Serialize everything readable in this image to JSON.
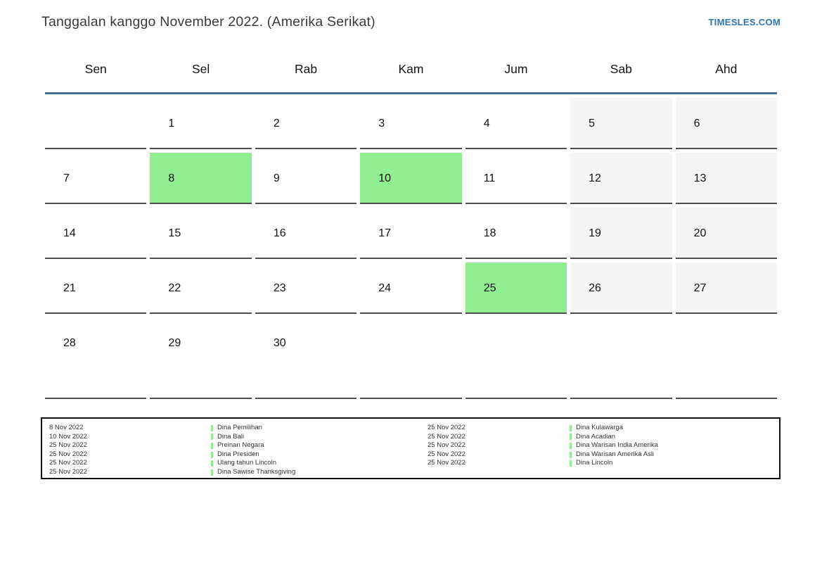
{
  "header": {
    "title": "Tanggalan kanggo November 2022. (Amerika Serikat)",
    "brand": "TIMESLES.COM"
  },
  "weekdays": [
    "Sen",
    "Sel",
    "Rab",
    "Kam",
    "Jum",
    "Sab",
    "Ahd"
  ],
  "calendar": {
    "month": "November 2022",
    "cells": [
      {
        "day": "",
        "state": "empty"
      },
      {
        "day": "1",
        "state": "normal"
      },
      {
        "day": "2",
        "state": "normal"
      },
      {
        "day": "3",
        "state": "normal"
      },
      {
        "day": "4",
        "state": "normal"
      },
      {
        "day": "5",
        "state": "weekend"
      },
      {
        "day": "6",
        "state": "weekend"
      },
      {
        "day": "7",
        "state": "normal"
      },
      {
        "day": "8",
        "state": "highlight"
      },
      {
        "day": "9",
        "state": "normal"
      },
      {
        "day": "10",
        "state": "highlight"
      },
      {
        "day": "11",
        "state": "normal"
      },
      {
        "day": "12",
        "state": "weekend"
      },
      {
        "day": "13",
        "state": "weekend"
      },
      {
        "day": "14",
        "state": "normal"
      },
      {
        "day": "15",
        "state": "normal"
      },
      {
        "day": "16",
        "state": "normal"
      },
      {
        "day": "17",
        "state": "normal"
      },
      {
        "day": "18",
        "state": "normal"
      },
      {
        "day": "19",
        "state": "weekend"
      },
      {
        "day": "20",
        "state": "weekend"
      },
      {
        "day": "21",
        "state": "normal"
      },
      {
        "day": "22",
        "state": "normal"
      },
      {
        "day": "23",
        "state": "normal"
      },
      {
        "day": "24",
        "state": "normal"
      },
      {
        "day": "25",
        "state": "highlight"
      },
      {
        "day": "26",
        "state": "weekend"
      },
      {
        "day": "27",
        "state": "weekend"
      },
      {
        "day": "28",
        "state": "normal"
      },
      {
        "day": "29",
        "state": "normal"
      },
      {
        "day": "30",
        "state": "normal"
      },
      {
        "day": "",
        "state": "empty"
      },
      {
        "day": "",
        "state": "empty"
      },
      {
        "day": "",
        "state": "empty"
      },
      {
        "day": "",
        "state": "empty"
      }
    ]
  },
  "legend": {
    "left": [
      {
        "date": "8 Nov 2022",
        "name": "Dina Pemilihan"
      },
      {
        "date": "10 Nov 2022",
        "name": "Dina Bali"
      },
      {
        "date": "25 Nov 2022",
        "name": "Preinan Negara"
      },
      {
        "date": "25 Nov 2022",
        "name": "Dina Presiden"
      },
      {
        "date": "25 Nov 2022",
        "name": "Ulang tahun Lincoln"
      },
      {
        "date": "25 Nov 2022",
        "name": "Dina Sawise Thanksgiving"
      }
    ],
    "right": [
      {
        "date": "25 Nov 2022",
        "name": "Dina Kulawarga"
      },
      {
        "date": "25 Nov 2022",
        "name": "Dina Acadian"
      },
      {
        "date": "25 Nov 2022",
        "name": "Dina Warisan India Amerika"
      },
      {
        "date": "25 Nov 2022",
        "name": "Dina Warisan Amerika Asli"
      },
      {
        "date": "25 Nov 2022",
        "name": "Dina Lincoln"
      }
    ]
  },
  "colors": {
    "highlight": "#90EE90",
    "weekend": "#F5F5F5",
    "header_line": "#4A6D96",
    "brand": "#2E74B5",
    "cell_border": "#4F4F4F",
    "marker": "#90EE90"
  }
}
